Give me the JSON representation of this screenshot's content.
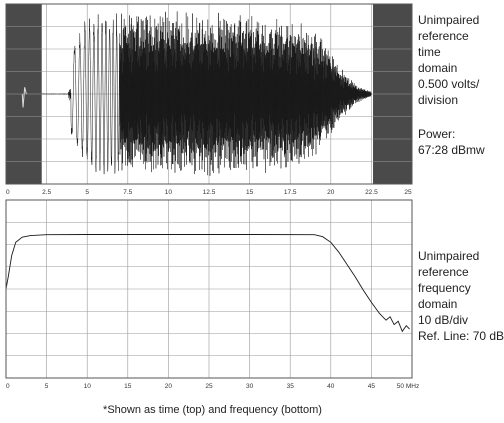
{
  "chart_data": [
    {
      "type": "line",
      "panel": "time",
      "xlim": [
        0,
        25
      ],
      "ylim": [
        -4,
        4
      ],
      "x_ticks": [
        0,
        2.5,
        5,
        7.5,
        10,
        12.5,
        15,
        17.5,
        20,
        22.5,
        25
      ],
      "x_tick_labels": [
        "0",
        "2.5",
        "5",
        "7.5",
        "10",
        "12.5",
        "15",
        "17.5",
        "20",
        "22.5",
        "25"
      ],
      "grid": true,
      "shaded_regions": [
        [
          0,
          2.2
        ],
        [
          22.6,
          25
        ]
      ],
      "envelope_points": [
        [
          2.2,
          0.05
        ],
        [
          3.8,
          0.05
        ],
        [
          4.0,
          2.0
        ],
        [
          5.0,
          3.5
        ],
        [
          6.0,
          3.65
        ],
        [
          10.0,
          3.7
        ],
        [
          15.0,
          3.65
        ],
        [
          18.0,
          3.3
        ],
        [
          19.5,
          2.5
        ],
        [
          20.5,
          1.3
        ],
        [
          21.5,
          0.45
        ],
        [
          22.5,
          0.1
        ]
      ],
      "annotation_lines": [
        "Unimpaired",
        "reference",
        "time",
        "domain",
        "0.500 volts/",
        "division"
      ],
      "power_lines": [
        "Power:",
        "67:28 dBmw"
      ]
    },
    {
      "type": "line",
      "panel": "frequency",
      "xlim": [
        0,
        50
      ],
      "ylim": [
        0,
        80
      ],
      "x_ticks": [
        0,
        5,
        10,
        15,
        20,
        25,
        30,
        35,
        40,
        45,
        50
      ],
      "x_tick_labels": [
        "0",
        "5",
        "10",
        "15",
        "20",
        "25",
        "30",
        "35",
        "40",
        "45",
        "50 MHz"
      ],
      "grid": true,
      "points": [
        [
          0.0,
          40
        ],
        [
          0.3,
          46
        ],
        [
          0.7,
          55
        ],
        [
          1.2,
          61
        ],
        [
          2.0,
          63.3
        ],
        [
          3.0,
          64
        ],
        [
          5.0,
          64.4
        ],
        [
          10.0,
          64.5
        ],
        [
          20.0,
          64.5
        ],
        [
          30.0,
          64.5
        ],
        [
          38.0,
          64.4
        ],
        [
          39.0,
          63.5
        ],
        [
          40.0,
          61
        ],
        [
          41.0,
          56.5
        ],
        [
          42.0,
          51
        ],
        [
          43.0,
          45.5
        ],
        [
          44.0,
          39.5
        ],
        [
          45.0,
          34
        ],
        [
          46.0,
          29
        ],
        [
          46.8,
          26
        ],
        [
          47.3,
          27.5
        ],
        [
          47.8,
          24
        ],
        [
          48.3,
          25.5
        ],
        [
          48.8,
          21
        ],
        [
          49.3,
          23.5
        ],
        [
          49.7,
          22
        ]
      ],
      "annotation_lines": [
        "Unimpaired",
        "reference",
        "frequency",
        "domain",
        "10 dB/div",
        "Ref. Line: 70 dB"
      ]
    }
  ],
  "footnote": "*Shown as time (top) and frequency (bottom)"
}
